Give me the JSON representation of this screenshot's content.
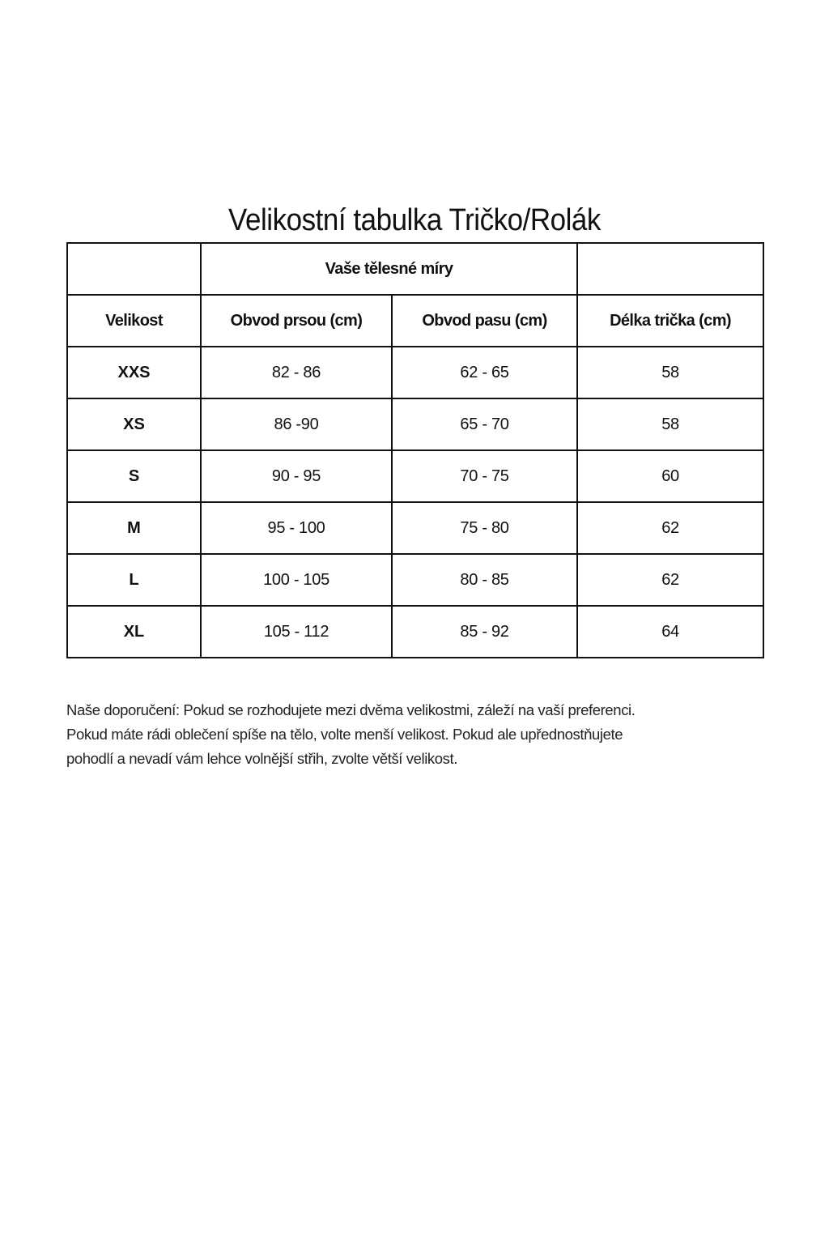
{
  "title": "Velikostní tabulka Tričko/Rolák",
  "table": {
    "group_header": "Vaše tělesné míry",
    "headers": [
      "Velikost",
      "Obvod prsou (cm)",
      "Obvod pasu (cm)",
      "Délka trička (cm)"
    ],
    "rows": [
      [
        "XXS",
        "82 - 86",
        "62 - 65",
        "58"
      ],
      [
        "XS",
        "86 -90",
        "65 - 70",
        "58"
      ],
      [
        "S",
        "90 - 95",
        "70 - 75",
        "60"
      ],
      [
        "M",
        "95 - 100",
        "75 - 80",
        "62"
      ],
      [
        "L",
        "100 - 105",
        "80 - 85",
        "62"
      ],
      [
        "XL",
        "105 - 112",
        "85 - 92",
        "64"
      ]
    ]
  },
  "note": {
    "lines": [
      "Naše doporučení: Pokud se rozhodujete mezi dvěma velikostmi, záleží na vaší preferenci.",
      "Pokud máte rádi oblečení spíše na tělo, volte menší velikost. Pokud ale upřednostňujete",
      "pohodlí a nevadí vám lehce volnější střih, zvolte větší velikost."
    ]
  }
}
